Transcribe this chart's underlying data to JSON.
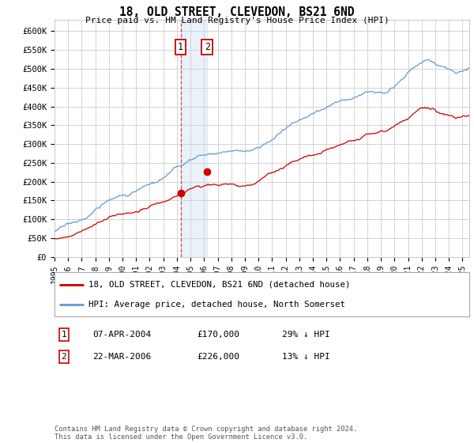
{
  "title": "18, OLD STREET, CLEVEDON, BS21 6ND",
  "subtitle": "Price paid vs. HM Land Registry's House Price Index (HPI)",
  "ylabel_ticks": [
    "£0",
    "£50K",
    "£100K",
    "£150K",
    "£200K",
    "£250K",
    "£300K",
    "£350K",
    "£400K",
    "£450K",
    "£500K",
    "£550K",
    "£600K"
  ],
  "ylim": [
    0,
    630000
  ],
  "xlim_start": 1995.0,
  "xlim_end": 2025.5,
  "transaction1_date": 2004.27,
  "transaction1_price": 170000,
  "transaction2_date": 2006.23,
  "transaction2_price": 226000,
  "legend_line1": "18, OLD STREET, CLEVEDON, BS21 6ND (detached house)",
  "legend_line2": "HPI: Average price, detached house, North Somerset",
  "table_row1": [
    "1",
    "07-APR-2004",
    "£170,000",
    "29% ↓ HPI"
  ],
  "table_row2": [
    "2",
    "22-MAR-2006",
    "£226,000",
    "13% ↓ HPI"
  ],
  "footnote": "Contains HM Land Registry data © Crown copyright and database right 2024.\nThis data is licensed under the Open Government Licence v3.0.",
  "hpi_color": "#6699cc",
  "price_color": "#cc0000",
  "vline_color": "#cc0000",
  "shade_color": "#c8d8ee",
  "bg_color": "#ffffff",
  "grid_color": "#cccccc",
  "box_color": "#cc0000"
}
